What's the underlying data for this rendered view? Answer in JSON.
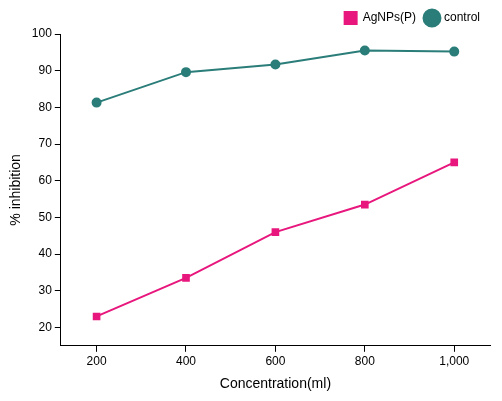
{
  "chart_data": {
    "type": "line",
    "x_label": "Concentration(ml)",
    "y_label": "% inhibition",
    "x": [
      200,
      400,
      600,
      800,
      1000
    ],
    "series": [
      {
        "name": "AgNPs(P)",
        "color": "#e8177d",
        "marker": "square",
        "values": [
          23,
          33.5,
          46,
          53.5,
          65
        ]
      },
      {
        "name": "control",
        "color": "#2a7d79",
        "marker": "circle",
        "values": [
          81.3,
          89.6,
          91.7,
          95.5,
          95.2
        ]
      }
    ],
    "xlim": [
      120,
      1080
    ],
    "xticks": [
      200,
      400,
      600,
      800,
      1000
    ],
    "ylim": [
      15,
      100
    ],
    "yticks": [
      20,
      30,
      40,
      50,
      60,
      70,
      80,
      90,
      100
    ],
    "grid": false,
    "legend": "top right"
  }
}
